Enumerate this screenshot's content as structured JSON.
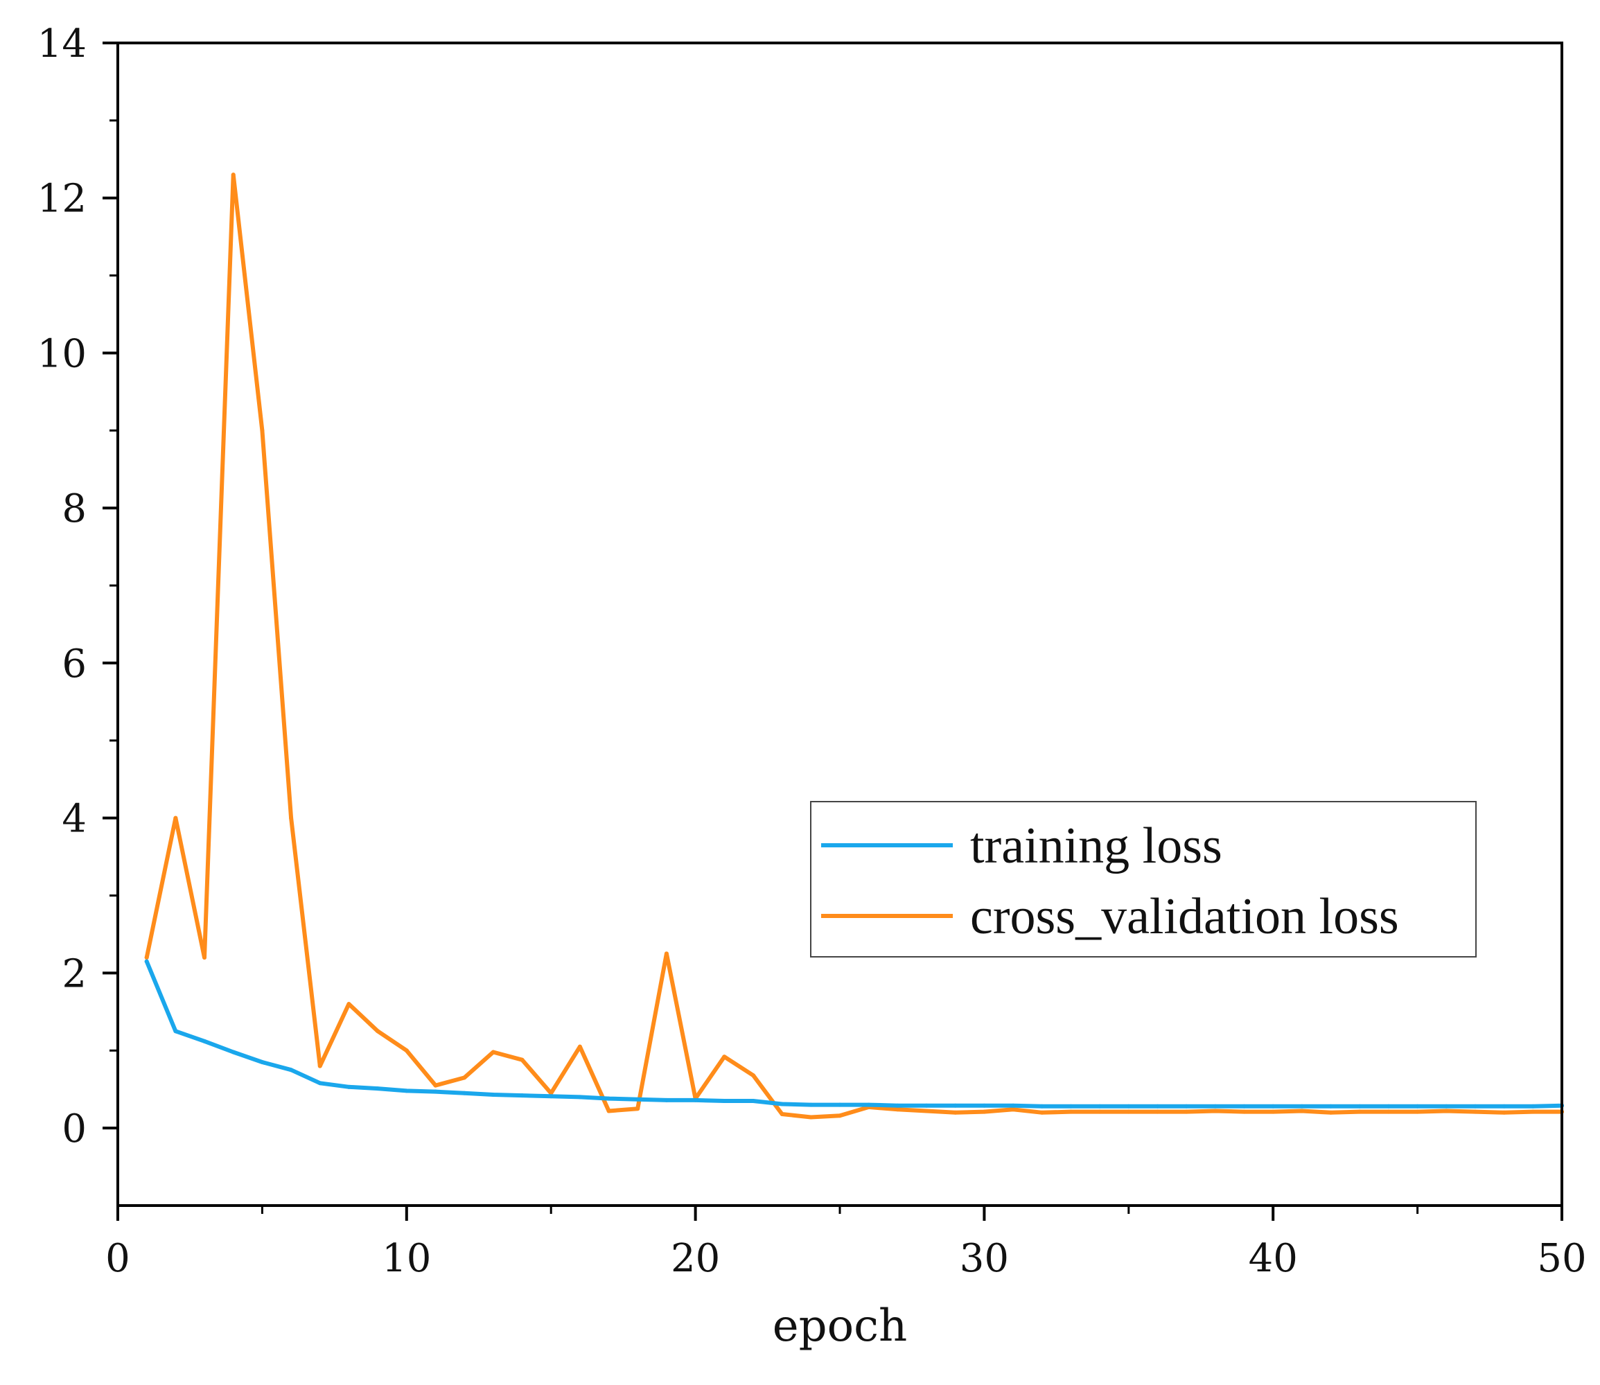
{
  "chart_data": {
    "type": "line",
    "title": "",
    "xlabel": "epoch",
    "ylabel": "",
    "xlim": [
      0,
      50
    ],
    "ylim": [
      -1,
      14
    ],
    "x_ticks": [
      0,
      10,
      20,
      30,
      40,
      50
    ],
    "y_ticks": [
      0,
      2,
      4,
      6,
      8,
      10,
      12,
      14
    ],
    "x_tick_labels": [
      "0",
      "10",
      "20",
      "30",
      "40",
      "50"
    ],
    "y_tick_labels": [
      "0",
      "2",
      "4",
      "6",
      "8",
      "10",
      "12",
      "14"
    ],
    "x_minor_step": 5,
    "y_minor_step": 1,
    "grid": false,
    "legend_position": "center-right",
    "x": [
      1,
      2,
      3,
      4,
      5,
      6,
      7,
      8,
      9,
      10,
      11,
      12,
      13,
      14,
      15,
      16,
      17,
      18,
      19,
      20,
      21,
      22,
      23,
      24,
      25,
      26,
      27,
      28,
      29,
      30,
      31,
      32,
      33,
      34,
      35,
      36,
      37,
      38,
      39,
      40,
      41,
      42,
      43,
      44,
      45,
      46,
      47,
      48,
      49,
      50
    ],
    "series": [
      {
        "name": "training loss",
        "color": "#1aa7ec",
        "values": [
          2.15,
          1.25,
          1.12,
          0.98,
          0.85,
          0.75,
          0.58,
          0.53,
          0.51,
          0.48,
          0.47,
          0.45,
          0.43,
          0.42,
          0.41,
          0.4,
          0.38,
          0.37,
          0.36,
          0.36,
          0.35,
          0.35,
          0.31,
          0.3,
          0.3,
          0.3,
          0.29,
          0.29,
          0.29,
          0.29,
          0.29,
          0.28,
          0.28,
          0.28,
          0.28,
          0.28,
          0.28,
          0.28,
          0.28,
          0.28,
          0.28,
          0.28,
          0.28,
          0.28,
          0.28,
          0.28,
          0.28,
          0.28,
          0.28,
          0.29
        ]
      },
      {
        "name": "cross_validation loss",
        "color": "#ff8c1a",
        "values": [
          2.2,
          4.0,
          2.2,
          12.3,
          9.0,
          4.0,
          0.8,
          1.6,
          1.25,
          1.0,
          0.55,
          0.65,
          0.98,
          0.88,
          0.45,
          1.05,
          0.22,
          0.25,
          2.25,
          0.38,
          0.92,
          0.68,
          0.18,
          0.14,
          0.16,
          0.27,
          0.24,
          0.22,
          0.2,
          0.21,
          0.24,
          0.2,
          0.21,
          0.21,
          0.21,
          0.21,
          0.21,
          0.22,
          0.21,
          0.21,
          0.22,
          0.2,
          0.21,
          0.21,
          0.21,
          0.22,
          0.21,
          0.2,
          0.21,
          0.21
        ]
      }
    ]
  }
}
